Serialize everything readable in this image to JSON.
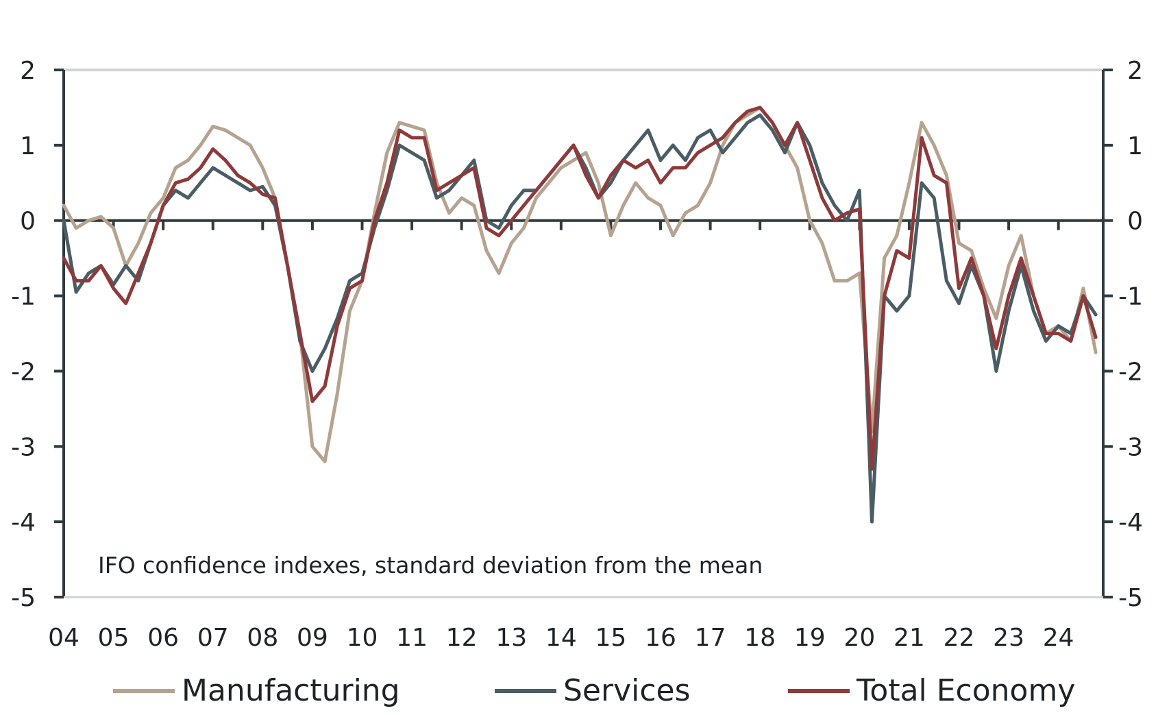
{
  "chart_data": {
    "type": "line",
    "annotation": "IFO confidence indexes, standard deviation from the mean",
    "ylim": [
      -5,
      2
    ],
    "yticks": [
      "2",
      "1",
      "0",
      "-1",
      "-2",
      "-3",
      "-4",
      "-5"
    ],
    "xlim": [
      2004,
      2024.9
    ],
    "xticks": [
      "04",
      "05",
      "06",
      "07",
      "08",
      "09",
      "10",
      "11",
      "12",
      "13",
      "14",
      "15",
      "16",
      "17",
      "18",
      "19",
      "20",
      "21",
      "22",
      "23",
      "24"
    ],
    "grid": "top border and zero line only",
    "legend_position": "bottom",
    "x": [
      2004.0,
      2004.25,
      2004.5,
      2004.75,
      2005.0,
      2005.25,
      2005.5,
      2005.75,
      2006.0,
      2006.25,
      2006.5,
      2006.75,
      2007.0,
      2007.25,
      2007.5,
      2007.75,
      2008.0,
      2008.25,
      2008.5,
      2008.75,
      2009.0,
      2009.25,
      2009.5,
      2009.75,
      2010.0,
      2010.25,
      2010.5,
      2010.75,
      2011.0,
      2011.25,
      2011.5,
      2011.75,
      2012.0,
      2012.25,
      2012.5,
      2012.75,
      2013.0,
      2013.25,
      2013.5,
      2013.75,
      2014.0,
      2014.25,
      2014.5,
      2014.75,
      2015.0,
      2015.25,
      2015.5,
      2015.75,
      2016.0,
      2016.25,
      2016.5,
      2016.75,
      2017.0,
      2017.25,
      2017.5,
      2017.75,
      2018.0,
      2018.25,
      2018.5,
      2018.75,
      2019.0,
      2019.25,
      2019.5,
      2019.75,
      2020.0,
      2020.25,
      2020.5,
      2020.75,
      2021.0,
      2021.25,
      2021.5,
      2021.75,
      2022.0,
      2022.25,
      2022.5,
      2022.75,
      2023.0,
      2023.25,
      2023.5,
      2023.75,
      2024.0,
      2024.25,
      2024.5,
      2024.75
    ],
    "series": [
      {
        "name": "Manufacturing",
        "color": "#b5a38f",
        "values": [
          0.2,
          -0.1,
          0.0,
          0.05,
          -0.1,
          -0.6,
          -0.3,
          0.1,
          0.3,
          0.7,
          0.8,
          1.0,
          1.25,
          1.2,
          1.1,
          1.0,
          0.7,
          0.3,
          -0.6,
          -1.5,
          -3.0,
          -3.2,
          -2.3,
          -1.2,
          -0.8,
          0.1,
          0.9,
          1.3,
          1.25,
          1.2,
          0.5,
          0.1,
          0.3,
          0.2,
          -0.4,
          -0.7,
          -0.3,
          -0.1,
          0.3,
          0.5,
          0.7,
          0.8,
          0.9,
          0.5,
          -0.2,
          0.2,
          0.5,
          0.3,
          0.2,
          -0.2,
          0.1,
          0.2,
          0.5,
          1.0,
          1.3,
          1.4,
          1.5,
          1.3,
          1.0,
          0.7,
          0.0,
          -0.3,
          -0.8,
          -0.8,
          -0.7,
          -2.8,
          -0.5,
          -0.2,
          0.5,
          1.3,
          1.0,
          0.6,
          -0.3,
          -0.4,
          -0.9,
          -1.3,
          -0.6,
          -0.2,
          -1.0,
          -1.5,
          -1.4,
          -1.6,
          -0.9,
          -1.75
        ]
      },
      {
        "name": "Services",
        "color": "#4a5d65",
        "values": [
          0.0,
          -0.95,
          -0.7,
          -0.6,
          -0.85,
          -0.6,
          -0.8,
          -0.3,
          0.2,
          0.4,
          0.3,
          0.5,
          0.7,
          0.6,
          0.5,
          0.4,
          0.45,
          0.2,
          -0.6,
          -1.6,
          -2.0,
          -1.7,
          -1.3,
          -0.8,
          -0.7,
          -0.1,
          0.4,
          1.0,
          0.9,
          0.8,
          0.3,
          0.4,
          0.6,
          0.8,
          0.0,
          -0.1,
          0.2,
          0.4,
          0.4,
          0.6,
          0.8,
          1.0,
          0.7,
          0.3,
          0.5,
          0.8,
          1.0,
          1.2,
          0.8,
          1.0,
          0.8,
          1.1,
          1.2,
          0.9,
          1.1,
          1.3,
          1.4,
          1.2,
          0.9,
          1.3,
          1.0,
          0.5,
          0.2,
          0.0,
          0.4,
          -4.0,
          -1.0,
          -1.2,
          -1.0,
          0.5,
          0.3,
          -0.8,
          -1.1,
          -0.6,
          -1.0,
          -2.0,
          -1.2,
          -0.6,
          -1.2,
          -1.6,
          -1.4,
          -1.5,
          -1.0,
          -1.25
        ]
      },
      {
        "name": "Total Economy",
        "color": "#8e3a3a",
        "values": [
          -0.5,
          -0.8,
          -0.8,
          -0.6,
          -0.9,
          -1.1,
          -0.7,
          -0.3,
          0.2,
          0.5,
          0.55,
          0.7,
          0.95,
          0.8,
          0.6,
          0.5,
          0.35,
          0.3,
          -0.6,
          -1.5,
          -2.4,
          -2.2,
          -1.4,
          -0.9,
          -0.8,
          0.0,
          0.5,
          1.2,
          1.1,
          1.1,
          0.4,
          0.5,
          0.6,
          0.7,
          -0.1,
          -0.2,
          0.0,
          0.2,
          0.4,
          0.6,
          0.8,
          1.0,
          0.6,
          0.3,
          0.6,
          0.8,
          0.7,
          0.8,
          0.5,
          0.7,
          0.7,
          0.9,
          1.0,
          1.1,
          1.3,
          1.45,
          1.5,
          1.3,
          1.0,
          1.3,
          0.8,
          0.3,
          0.0,
          0.1,
          0.15,
          -3.3,
          -1.0,
          -0.4,
          -0.5,
          1.1,
          0.6,
          0.5,
          -0.9,
          -0.5,
          -1.0,
          -1.7,
          -1.0,
          -0.5,
          -1.0,
          -1.5,
          -1.5,
          -1.6,
          -1.0,
          -1.55
        ]
      }
    ]
  }
}
